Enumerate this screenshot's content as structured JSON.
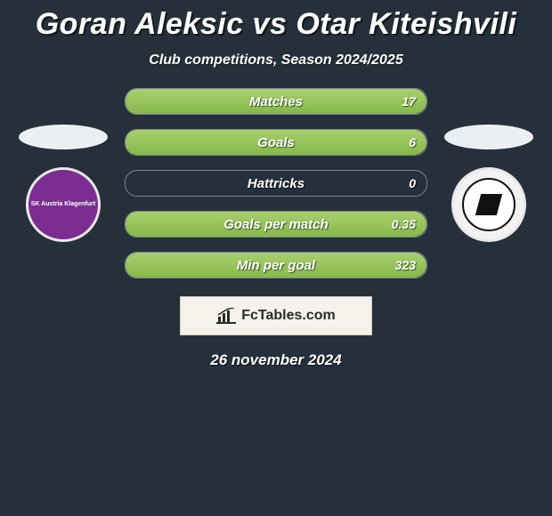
{
  "header": {
    "title": "Goran Aleksic vs Otar Kiteishvili",
    "subtitle": "Club competitions, Season 2024/2025"
  },
  "left_club": {
    "name": "SK Austria Klagenfurt",
    "badge_bg": "#7b2d91"
  },
  "right_club": {
    "name": "SK Sturm Graz",
    "badge_bg": "#f2f2f2"
  },
  "stats": {
    "rows": [
      {
        "label": "Matches",
        "left_pct": 0,
        "right_pct": 100,
        "right_value": "17"
      },
      {
        "label": "Goals",
        "left_pct": 0,
        "right_pct": 100,
        "right_value": "6"
      },
      {
        "label": "Hattricks",
        "left_pct": 0,
        "right_pct": 0,
        "right_value": "0"
      },
      {
        "label": "Goals per match",
        "left_pct": 0,
        "right_pct": 100,
        "right_value": "0.35"
      },
      {
        "label": "Min per goal",
        "left_pct": 0,
        "right_pct": 100,
        "right_value": "323"
      }
    ],
    "bar_border_color": "#7d8790",
    "left_fill_color": "#2f5a95",
    "right_fill_color": "#86b84a",
    "label_fontsize": 15,
    "value_fontsize": 14
  },
  "brand": {
    "text": "FcTables.com"
  },
  "date": "26 november 2024",
  "background_color": "#26303a"
}
